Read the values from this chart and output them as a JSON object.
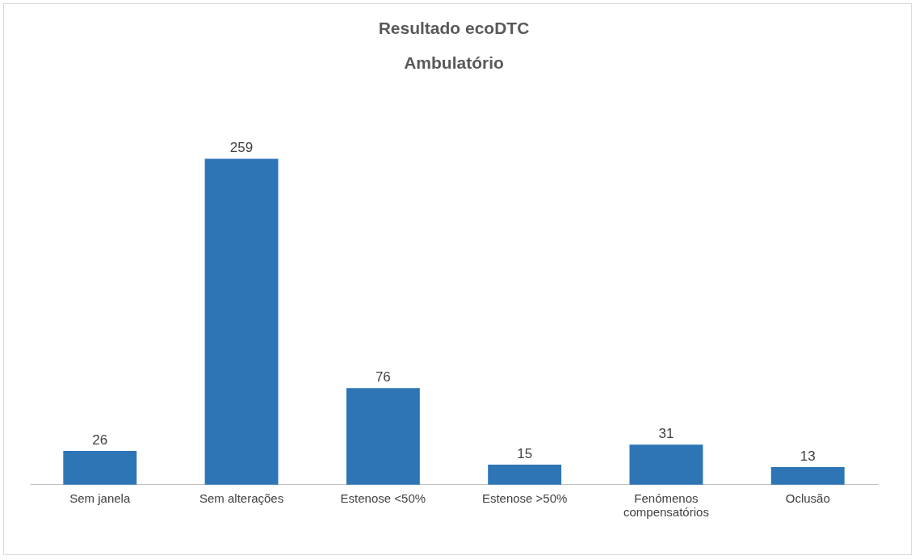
{
  "chart_data": {
    "type": "bar",
    "title": "Resultado ecoDTC",
    "subtitle": "Ambulatório",
    "categories": [
      "Sem janela",
      "Sem alterações",
      "Estenose <50%",
      "Estenose >50%",
      "Fenómenos compensatórios",
      "Oclusão"
    ],
    "values": [
      26,
      259,
      76,
      15,
      31,
      13
    ],
    "color": "#2e75b6",
    "data_labels": true
  }
}
